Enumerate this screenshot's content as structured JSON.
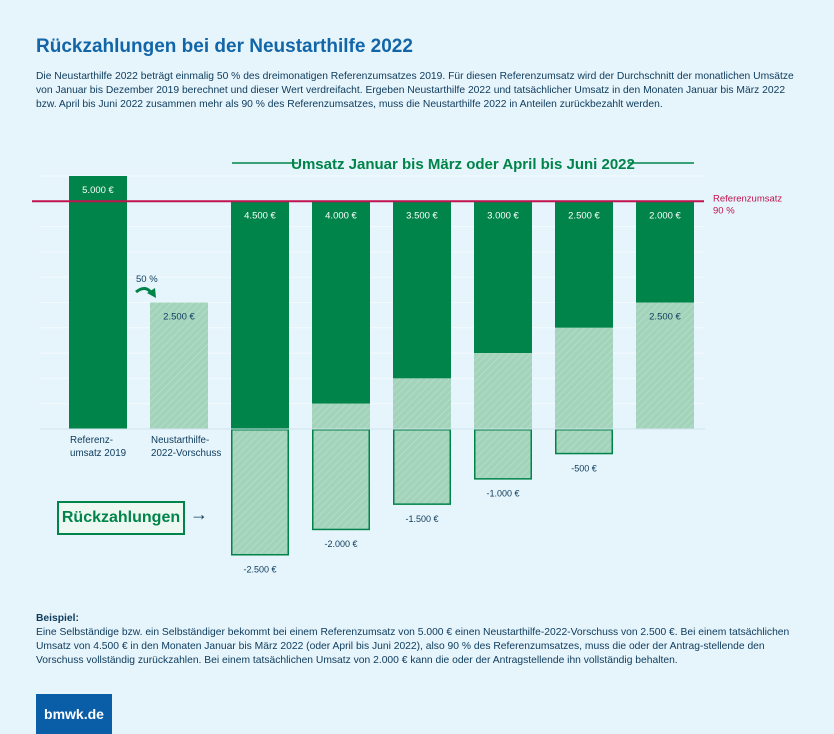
{
  "title": "Rückzahlungen bei der Neustarthilfe 2022",
  "intro": "Die Neustarthilfe 2022 beträgt einmalig 50 % des dreimonatigen Referenzumsatzes 2019. Für diesen Referenzumsatz wird der Durchschnitt der monatlichen Umsätze von Januar bis Dezember 2019 berechnet und dieser Wert verdreifacht. Ergeben Neustarthilfe 2022 und tatsächlicher Umsatz in den Monaten Januar bis März 2022 bzw. April bis Juni 2022 zusammen mehr als 90 % des Referenzumsatzes, muss die Neustarthilfe 2022 in Anteilen zurückbezahlt werden.",
  "example": {
    "heading": "Beispiel:",
    "text": "Eine Selbständige bzw. ein Selbständiger bekommt bei einem Referenzumsatz von 5.000 € einen Neustarthilfe-2022-Vorschuss von 2.500 €. Bei einem tatsächlichen Umsatz von 4.500 € in den Monaten Januar bis März 2022 (oder April bis Juni 2022), also 90 % des Referenzumsatzes, muss die oder der Antrag-stellende den Vorschuss vollständig zurückzahlen. Bei einem tatsächlichen Umsatz von 2.000 € kann die oder der Antragstellende ihn vollständig behalten."
  },
  "logo": "bmwk.de",
  "repayments_label": "Rückzahlungen",
  "repayments_arrow": "→",
  "colors": {
    "revenue": "#00844a",
    "advance": "#a3d4bb",
    "reference_line": "#c0134f",
    "title": "#1266a8",
    "background": "#e6f4fb"
  },
  "chart_data": {
    "type": "bar",
    "stacked": true,
    "group_title": "Umsatz Januar bis März oder April bis Juni 2022",
    "categories": [
      "Referenz-\numsatz 2019",
      "Neustarthilfe-\n2022-Vorschuss",
      "",
      "",
      "",
      "",
      "",
      ""
    ],
    "series": [
      {
        "key": "revenue",
        "values": [
          5000,
          null,
          4500,
          4000,
          3500,
          3000,
          2500,
          2000
        ],
        "labels": [
          "5.000 €",
          "",
          "4.500 €",
          "4.000 €",
          "3.500 €",
          "3.000 €",
          "2.500 €",
          "2.000 €"
        ]
      },
      {
        "key": "advance_kept",
        "values": [
          null,
          2500,
          0,
          500,
          1000,
          1500,
          2000,
          2500
        ],
        "labels": [
          "",
          "2.500 €",
          "",
          "",
          "",
          "",
          "",
          "2.500 €"
        ]
      },
      {
        "key": "repayment",
        "values": [
          null,
          null,
          -2500,
          -2000,
          -1500,
          -1000,
          -500,
          0
        ],
        "labels": [
          "",
          "",
          "-2.500 €",
          "-2.000 €",
          "-1.500 €",
          "-1.000 €",
          "-500 €",
          ""
        ]
      }
    ],
    "reference_line": {
      "value": 4500,
      "label": [
        "Referenzumsatz",
        "90 %"
      ]
    },
    "advance_annotation": "50 %",
    "ylim": [
      -2500,
      5000
    ],
    "grid": true,
    "grid_step": 500
  }
}
